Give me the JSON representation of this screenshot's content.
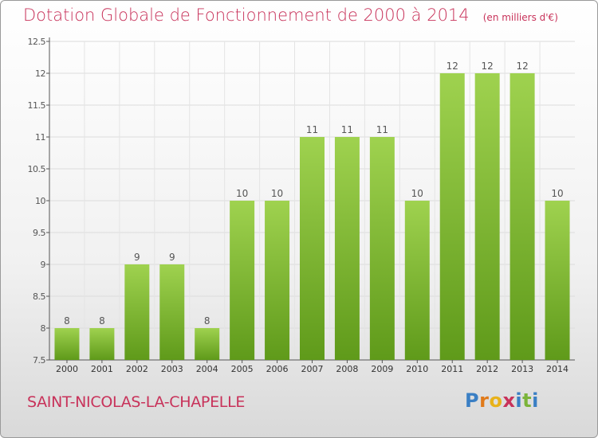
{
  "title": "Dotation Globale de Fonctionnement de 2000 à 2014",
  "unit_note": "(en milliers d'€)",
  "town_name": "SAINT-NICOLAS-LA-CHAPELLE",
  "logo": {
    "letters": [
      "P",
      "r",
      "o",
      "x",
      "i",
      "t",
      "i"
    ],
    "colors": [
      "#3a7fc4",
      "#e07a1a",
      "#e8b21a",
      "#c8325a",
      "#3a7fc4",
      "#7bb43a",
      "#3a7fc4"
    ]
  },
  "colors": {
    "title": "#c8325a",
    "bar_light": "#9fd24f",
    "bar_dark": "#5f9a1a"
  },
  "chart_data": {
    "type": "bar",
    "categories": [
      "2000",
      "2001",
      "2002",
      "2003",
      "2004",
      "2005",
      "2006",
      "2007",
      "2008",
      "2009",
      "2010",
      "2011",
      "2012",
      "2013",
      "2014"
    ],
    "values": [
      8,
      8,
      9,
      9,
      8,
      10,
      10,
      11,
      11,
      11,
      10,
      12,
      12,
      12,
      10
    ],
    "data_labels": [
      "8",
      "8",
      "9",
      "9",
      "8",
      "10",
      "10",
      "11",
      "11",
      "11",
      "10",
      "12",
      "12",
      "12",
      "10"
    ],
    "y_ticks": [
      7.5,
      8,
      8.5,
      9,
      9.5,
      10,
      10.5,
      11,
      11.5,
      12,
      12.5
    ],
    "y_tick_labels": [
      "7.5",
      "8",
      "8.5",
      "9",
      "9.5",
      "10",
      "10.5",
      "11",
      "11.5",
      "12",
      "12.5"
    ],
    "ylim": [
      7.5,
      12.5
    ],
    "grid": true,
    "legend": "none"
  }
}
